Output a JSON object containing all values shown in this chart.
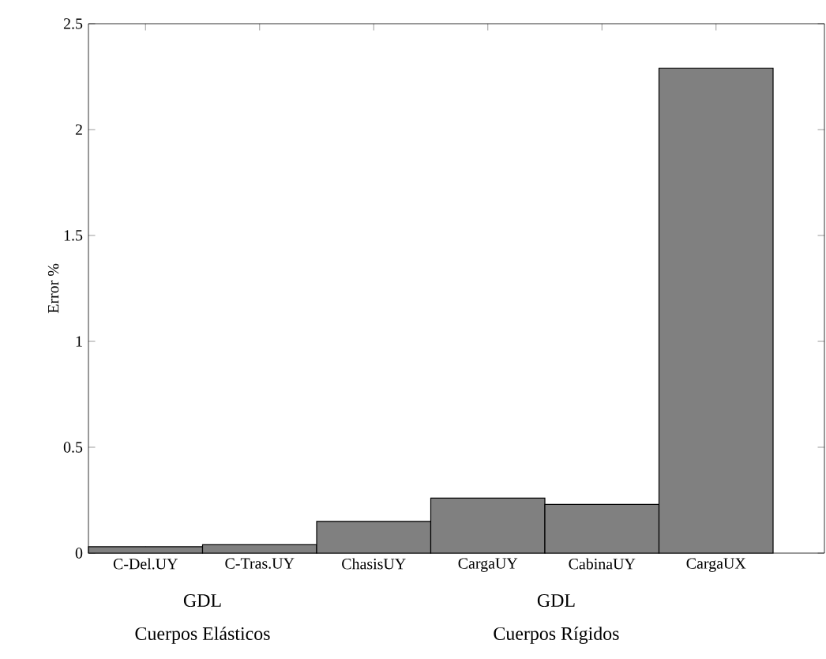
{
  "chart_data": {
    "type": "bar",
    "ylabel": "Error %",
    "categories": [
      "C-Del.UY",
      "C-Tras.UY",
      "ChasisUY",
      "CargaUY",
      "CabinaUY",
      "CargaUX"
    ],
    "values": [
      0.03,
      0.04,
      0.15,
      0.26,
      0.23,
      2.29
    ],
    "color": "#808080",
    "ylim": [
      0,
      2.5
    ],
    "yticks": [
      0,
      0.5,
      1,
      1.5,
      2,
      2.5
    ],
    "annotations": [
      "GDL",
      "Cuerpos Elásticos",
      "GDL",
      "Cuerpos Rígidos"
    ]
  }
}
